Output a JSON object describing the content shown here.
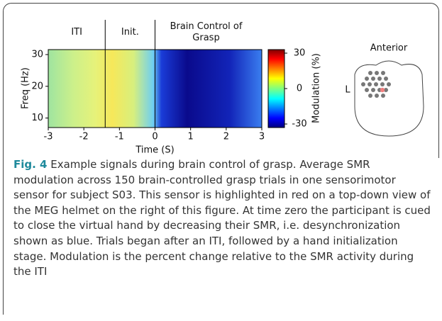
{
  "chart_data": {
    "type": "heatmap",
    "phases": [
      "ITI",
      "Init.",
      "Brain Control of Grasp"
    ],
    "phase_boundaries": [
      -1.4,
      0
    ],
    "xlabel": "Time (S)",
    "ylabel": "Freq (Hz)",
    "xlim": [
      -3,
      3
    ],
    "xticks": [
      -3,
      -2,
      -1,
      0,
      1,
      2,
      3
    ],
    "ylim": [
      7,
      30
    ],
    "yticks": [
      10,
      20,
      30
    ],
    "colorbar": {
      "label": "Modulation (%)",
      "lim": [
        -33,
        33
      ],
      "ticks": [
        30,
        0,
        -30
      ]
    }
  },
  "helmet": {
    "top_label": "Anterior",
    "side_label": "L"
  },
  "caption": {
    "label": "Fig. 4",
    "title": "Example signals during brain control of grasp.",
    "text": "Average SMR modulation across 150 brain-controlled grasp trials in one sensorimotor sensor for subject S03. This sensor is highlighted in red on a top-down view of the MEG helmet on the right of this figure. At time zero the participant is cued to close the virtual hand by decreasing their SMR, i.e. desynchronization shown as blue. Trials began after an ITI, followed by a hand initialization stage. Modulation is the percent change relative to the SMR activity during the ITI"
  }
}
